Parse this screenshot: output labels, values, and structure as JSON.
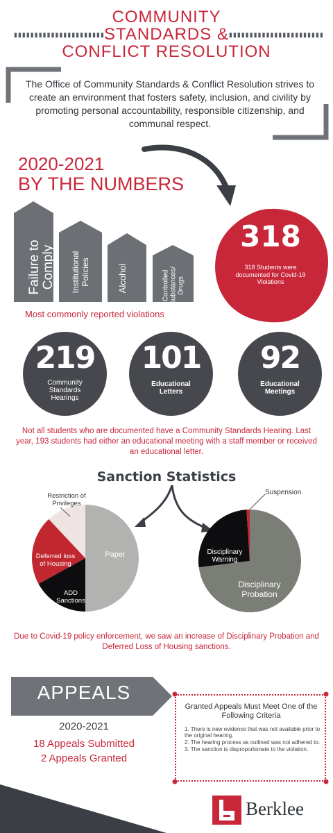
{
  "header": {
    "title_line1": "COMMUNITY",
    "title_line2": "STANDARDS &",
    "title_line3": "CONFLICT RESOLUTION"
  },
  "mission": "The Office of Community Standards & Conflict Resolution strives to create an environment that fosters safety, inclusion, and civility by promoting personal accountability, responsible citizenship, and communal respect.",
  "numbers": {
    "heading_line1": "2020-2021",
    "heading_line2": "BY THE NUMBERS",
    "violations": [
      "Failure to Comply",
      "Institutional Policies",
      "Alcohol",
      "Controlled Substances/ Drugs"
    ],
    "violations_caption": "Most commonly reported violations",
    "covid": {
      "value": "318",
      "text": "318 Students were documented for Covid-19 Violations"
    },
    "stats": [
      {
        "value": "219",
        "label": "Community Standards Hearings"
      },
      {
        "value": "101",
        "label": "Educational Letters"
      },
      {
        "value": "92",
        "label": "Educational Meetings"
      }
    ],
    "note": "Not all students who are documented have a Community Standards Hearing. Last year, 193 students had either an educational meeting with a staff member or received an educational letter."
  },
  "sanctions": {
    "title": "Sanction Statistics",
    "pie1": [
      {
        "label": "Paper",
        "value": 50,
        "color": "#b2b3b0"
      },
      {
        "label": "ADD Sanctions",
        "value": 17,
        "color": "#0d0d0f"
      },
      {
        "label": "Deferred loss of Housing",
        "value": 21,
        "color": "#c0272f"
      },
      {
        "label": "Restriction of Privileges",
        "value": 12,
        "color": "#efe4e4"
      }
    ],
    "pie2": [
      {
        "label": "Disciplinary Probation",
        "value": 73,
        "color": "#7b7e76"
      },
      {
        "label": "Disciplinary Warning",
        "value": 26,
        "color": "#0d0d0f"
      },
      {
        "label": "Suspension",
        "value": 1,
        "color": "#c0272f"
      }
    ],
    "note": "Due to Covid-19 policy enforcement, we saw an increase of Disciplinary Probation and Deferred Loss of Housing sanctions."
  },
  "appeals": {
    "title": "APPEALS",
    "year": "2020-2021",
    "submitted": "18 Appeals Submitted",
    "granted": "2 Appeals Granted",
    "criteria_title": "Granted Appeals Must Meet One of the Following Criteria",
    "criteria": [
      "1. There is new evidence that was not available prior to the original hearing.",
      "2. The hearing process as outlined was not adhered to.",
      "3. The sanction is disproportionate to the violation."
    ]
  },
  "footer": {
    "brand": "Berklee"
  },
  "colors": {
    "accent": "#c8273a",
    "dark": "#46484e",
    "gray": "#6f7378"
  }
}
